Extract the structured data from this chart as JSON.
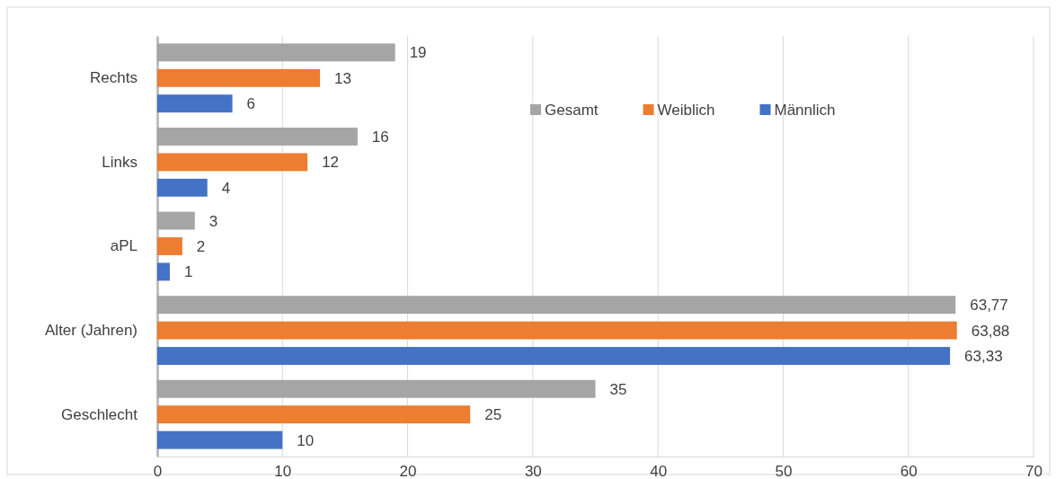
{
  "chart_data": {
    "type": "bar",
    "orientation": "horizontal",
    "categories": [
      "Rechts",
      "Links",
      "aPL",
      "Alter (Jahren)",
      "Geschlecht"
    ],
    "series": [
      {
        "name": "Gesamt",
        "color": "#a5a5a5",
        "values": [
          19,
          16,
          3,
          63.77,
          35
        ],
        "value_labels": [
          "19",
          "16",
          "3",
          "63,77",
          "35"
        ]
      },
      {
        "name": "Weiblich",
        "color": "#ed7d31",
        "values": [
          13,
          12,
          2,
          63.88,
          25
        ],
        "value_labels": [
          "13",
          "12",
          "2",
          "63,88",
          "25"
        ]
      },
      {
        "name": "Männlich",
        "color": "#4472c4",
        "values": [
          6,
          4,
          1,
          63.33,
          10
        ],
        "value_labels": [
          "6",
          "4",
          "1",
          "63,33",
          "10"
        ]
      }
    ],
    "xlim": [
      0,
      70
    ],
    "xticks": [
      0,
      10,
      20,
      30,
      40,
      50,
      60,
      70
    ],
    "grid": "x",
    "legend": "top right"
  }
}
